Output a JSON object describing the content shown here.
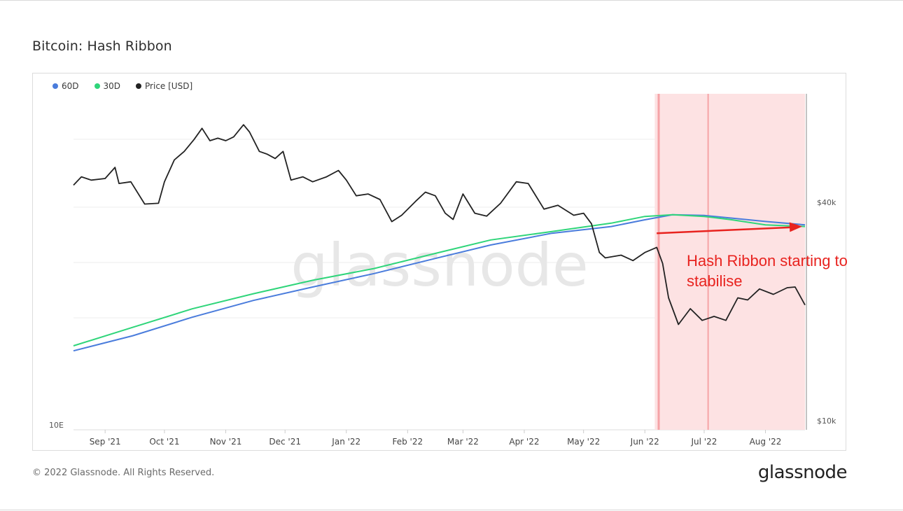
{
  "page": {
    "title": "Bitcoin: Hash Ribbon",
    "footer": "© 2022 Glassnode. All Rights Reserved.",
    "brand": "glassnode",
    "watermark": "glassnode"
  },
  "chart_data": {
    "type": "line",
    "title": "Bitcoin: Hash Ribbon",
    "legend": [
      {
        "name": "60D",
        "color": "#4a7cdc"
      },
      {
        "name": "30D",
        "color": "#2fd57a"
      },
      {
        "name": "Price [USD]",
        "color": "#222222"
      }
    ],
    "x_ticks": [
      "Sep '21",
      "Oct '21",
      "Nov '21",
      "Dec '21",
      "Jan '22",
      "Feb '22",
      "Mar '22",
      "Apr '22",
      "May '22",
      "Jun '22",
      "Jul '22",
      "Aug '22"
    ],
    "x_tick_dates": [
      "2021-09-01",
      "2021-10-01",
      "2021-11-01",
      "2021-12-01",
      "2022-01-01",
      "2022-02-01",
      "2022-03-01",
      "2022-04-01",
      "2022-05-01",
      "2022-06-01",
      "2022-07-01",
      "2022-08-01"
    ],
    "x_range": [
      "2021-08-16",
      "2022-08-21"
    ],
    "y_left_label": "10E",
    "y_right_ticks": [
      "$40k",
      "$10k"
    ],
    "y_right_values": [
      40000,
      10000
    ],
    "y_right_scale": "log",
    "price_usd": [
      [
        "2021-08-16",
        46000
      ],
      [
        "2021-08-20",
        48500
      ],
      [
        "2021-08-25",
        47500
      ],
      [
        "2021-09-01",
        48000
      ],
      [
        "2021-09-06",
        51500
      ],
      [
        "2021-09-08",
        46500
      ],
      [
        "2021-09-14",
        47000
      ],
      [
        "2021-09-21",
        40800
      ],
      [
        "2021-09-28",
        41000
      ],
      [
        "2021-10-01",
        47000
      ],
      [
        "2021-10-06",
        54000
      ],
      [
        "2021-10-11",
        57000
      ],
      [
        "2021-10-16",
        61500
      ],
      [
        "2021-10-20",
        66000
      ],
      [
        "2021-10-24",
        61000
      ],
      [
        "2021-10-28",
        62000
      ],
      [
        "2021-11-01",
        61000
      ],
      [
        "2021-11-05",
        62500
      ],
      [
        "2021-11-10",
        67500
      ],
      [
        "2021-11-13",
        64500
      ],
      [
        "2021-11-18",
        57000
      ],
      [
        "2021-11-22",
        56000
      ],
      [
        "2021-11-26",
        54500
      ],
      [
        "2021-11-30",
        57000
      ],
      [
        "2021-12-04",
        47500
      ],
      [
        "2021-12-10",
        48500
      ],
      [
        "2021-12-15",
        47000
      ],
      [
        "2021-12-22",
        48500
      ],
      [
        "2021-12-28",
        50500
      ],
      [
        "2022-01-01",
        47500
      ],
      [
        "2022-01-06",
        43000
      ],
      [
        "2022-01-12",
        43500
      ],
      [
        "2022-01-18",
        42000
      ],
      [
        "2022-01-24",
        36500
      ],
      [
        "2022-01-29",
        38000
      ],
      [
        "2022-02-05",
        41500
      ],
      [
        "2022-02-10",
        44000
      ],
      [
        "2022-02-15",
        43000
      ],
      [
        "2022-02-20",
        38500
      ],
      [
        "2022-02-24",
        37000
      ],
      [
        "2022-03-01",
        43500
      ],
      [
        "2022-03-07",
        38500
      ],
      [
        "2022-03-13",
        37800
      ],
      [
        "2022-03-20",
        41000
      ],
      [
        "2022-03-28",
        47000
      ],
      [
        "2022-04-03",
        46500
      ],
      [
        "2022-04-11",
        39500
      ],
      [
        "2022-04-18",
        40500
      ],
      [
        "2022-04-26",
        38000
      ],
      [
        "2022-05-01",
        38500
      ],
      [
        "2022-05-05",
        36000
      ],
      [
        "2022-05-09",
        30000
      ],
      [
        "2022-05-12",
        29000
      ],
      [
        "2022-05-20",
        29500
      ],
      [
        "2022-05-26",
        28500
      ],
      [
        "2022-06-01",
        30000
      ],
      [
        "2022-06-07",
        31000
      ],
      [
        "2022-06-10",
        28000
      ],
      [
        "2022-06-13",
        22500
      ],
      [
        "2022-06-18",
        19000
      ],
      [
        "2022-06-24",
        21000
      ],
      [
        "2022-06-30",
        19500
      ],
      [
        "2022-07-06",
        20000
      ],
      [
        "2022-07-12",
        19500
      ],
      [
        "2022-07-18",
        22500
      ],
      [
        "2022-07-23",
        22200
      ],
      [
        "2022-07-29",
        23800
      ],
      [
        "2022-08-05",
        23000
      ],
      [
        "2022-08-12",
        24000
      ],
      [
        "2022-08-16",
        24100
      ],
      [
        "2022-08-21",
        21500
      ]
    ],
    "series_30d": [
      [
        "2021-08-16",
        0.25
      ],
      [
        "2021-09-15",
        0.305
      ],
      [
        "2021-10-15",
        0.36
      ],
      [
        "2021-11-15",
        0.405
      ],
      [
        "2021-12-15",
        0.445
      ],
      [
        "2022-01-15",
        0.48
      ],
      [
        "2022-02-15",
        0.525
      ],
      [
        "2022-03-15",
        0.565
      ],
      [
        "2022-04-15",
        0.59
      ],
      [
        "2022-05-15",
        0.615
      ],
      [
        "2022-06-01",
        0.635
      ],
      [
        "2022-06-15",
        0.64
      ],
      [
        "2022-07-01",
        0.635
      ],
      [
        "2022-07-15",
        0.625
      ],
      [
        "2022-08-01",
        0.61
      ],
      [
        "2022-08-21",
        0.605
      ]
    ],
    "series_60d": [
      [
        "2021-08-16",
        0.235
      ],
      [
        "2021-09-15",
        0.28
      ],
      [
        "2021-10-15",
        0.335
      ],
      [
        "2021-11-15",
        0.385
      ],
      [
        "2021-12-15",
        0.425
      ],
      [
        "2022-01-15",
        0.465
      ],
      [
        "2022-02-15",
        0.51
      ],
      [
        "2022-03-15",
        0.55
      ],
      [
        "2022-04-15",
        0.585
      ],
      [
        "2022-05-15",
        0.605
      ],
      [
        "2022-06-01",
        0.625
      ],
      [
        "2022-06-15",
        0.64
      ],
      [
        "2022-07-01",
        0.638
      ],
      [
        "2022-07-15",
        0.63
      ],
      [
        "2022-08-01",
        0.62
      ],
      [
        "2022-08-21",
        0.61
      ]
    ],
    "highlight_region": [
      "2022-06-06",
      "2022-08-21"
    ],
    "highlight_lines": [
      "2022-06-08",
      "2022-07-03"
    ],
    "annotation": {
      "text_line1": "Hash Ribbon starting to",
      "text_line2": "stabilise",
      "color": "#e8231f",
      "arrow_from": [
        "2022-06-07",
        0.585
      ],
      "arrow_to": [
        "2022-08-21",
        0.605
      ]
    },
    "grid": true,
    "legend_placement": "top-left"
  }
}
